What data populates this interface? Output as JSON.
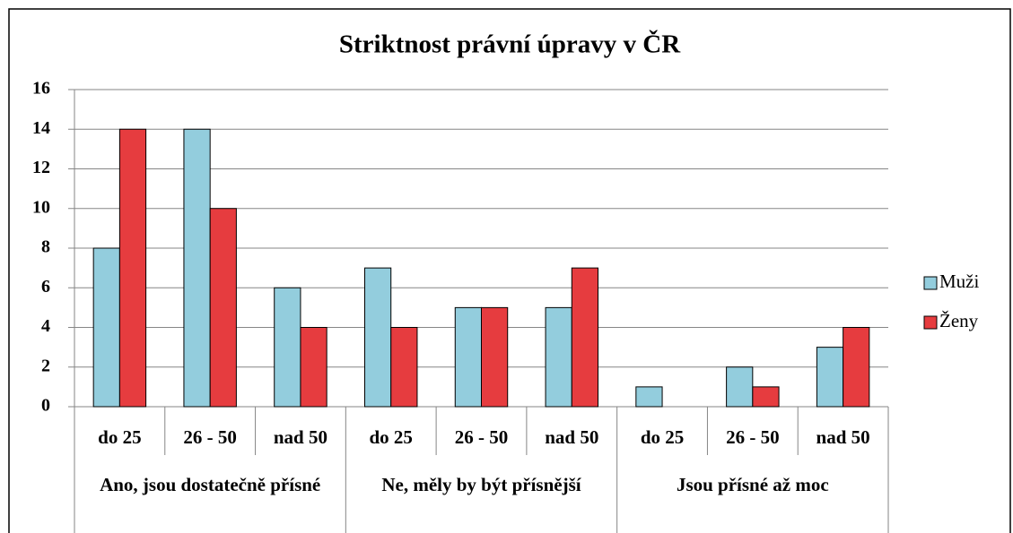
{
  "chart_data": {
    "type": "bar",
    "title": "Striktnost právní úpravy v ČR",
    "categories": [
      "do 25",
      "26 - 50",
      "nad 50",
      "do 25",
      "26 - 50",
      "nad 50",
      "do 25",
      "26 - 50",
      "nad 50"
    ],
    "groups": [
      "Ano, jsou dostatečně přísné",
      "Ne, měly by být přísnější",
      "Jsou přísné až moc"
    ],
    "series": [
      {
        "name": "Muži",
        "color": "#93cddd",
        "values": [
          8,
          14,
          6,
          7,
          5,
          5,
          1,
          2,
          3
        ]
      },
      {
        "name": "Ženy",
        "color": "#e63c3f",
        "values": [
          14,
          10,
          4,
          4,
          5,
          7,
          0,
          1,
          4
        ]
      }
    ],
    "ylim": [
      0,
      16
    ],
    "yticks": [
      0,
      2,
      4,
      6,
      8,
      10,
      12,
      14,
      16
    ],
    "grid": true,
    "legend": "right"
  }
}
